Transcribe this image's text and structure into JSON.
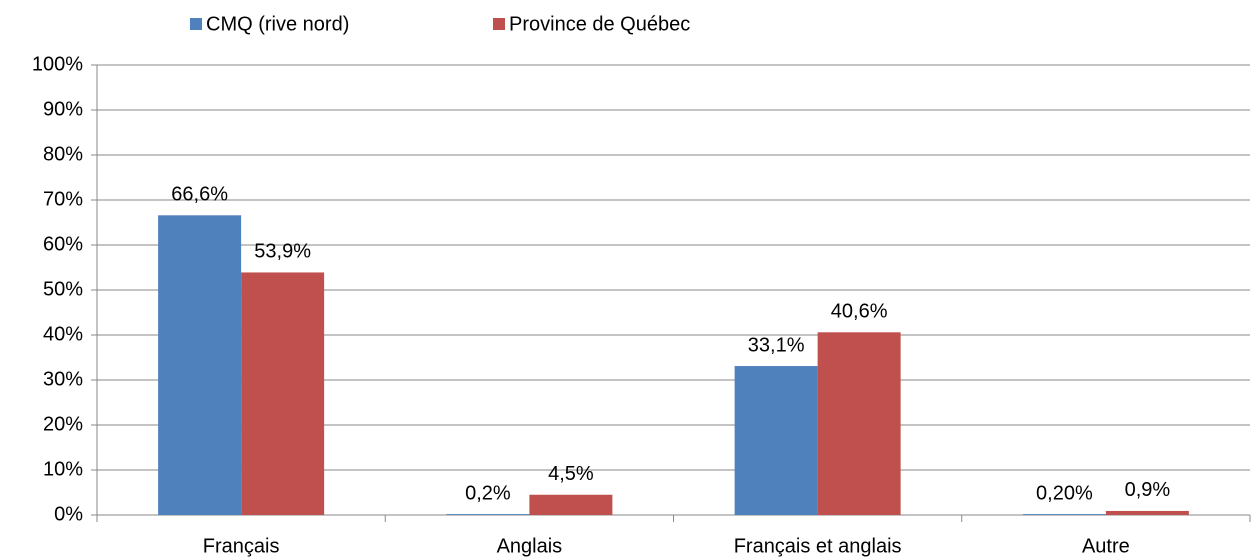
{
  "chart_data": {
    "type": "bar",
    "categories": [
      "Français",
      "Anglais",
      "Français et anglais",
      "Autre"
    ],
    "series": [
      {
        "name": "CMQ (rive nord)",
        "color": "#4f81bd",
        "values": [
          66.6,
          0.2,
          33.1,
          0.2
        ],
        "value_labels": [
          "66,6%",
          "0,2%",
          "33,1%",
          "0,20%"
        ]
      },
      {
        "name": "Province de Québec",
        "color": "#c0504d",
        "values": [
          53.9,
          4.5,
          40.6,
          0.9
        ],
        "value_labels": [
          "53,9%",
          "4,5%",
          "40,6%",
          "0,9%"
        ]
      }
    ],
    "ylim": [
      0,
      100
    ],
    "yticks": [
      {
        "value": 0,
        "label": "0%"
      },
      {
        "value": 10,
        "label": "10%"
      },
      {
        "value": 20,
        "label": "20%"
      },
      {
        "value": 30,
        "label": "30%"
      },
      {
        "value": 40,
        "label": "40%"
      },
      {
        "value": 50,
        "label": "50%"
      },
      {
        "value": 60,
        "label": "60%"
      },
      {
        "value": 70,
        "label": "70%"
      },
      {
        "value": 80,
        "label": "80%"
      },
      {
        "value": 90,
        "label": "90%"
      },
      {
        "value": 100,
        "label": "100%"
      }
    ],
    "grid": true,
    "legend": "top"
  }
}
